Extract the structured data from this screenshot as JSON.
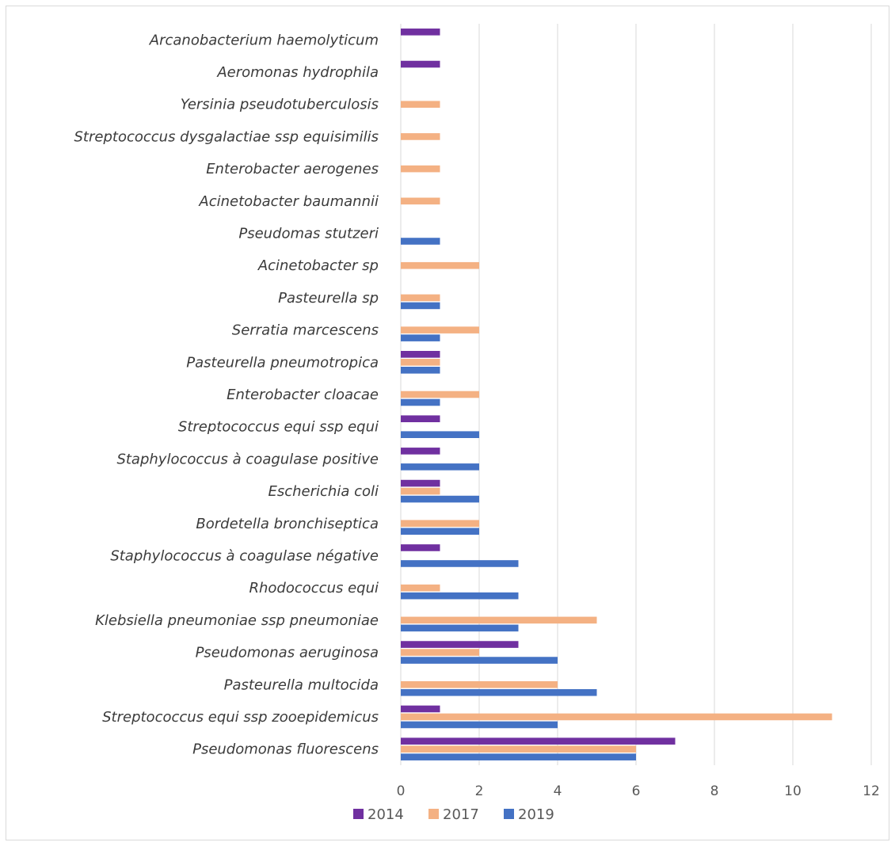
{
  "chart_data": {
    "type": "bar",
    "orientation": "horizontal",
    "categories": [
      "Pseudomonas fluorescens",
      "Streptococcus equi ssp zooepidemicus",
      "Pasteurella multocida",
      "Pseudomonas aeruginosa",
      "Klebsiella pneumoniae ssp pneumoniae",
      "Rhodococcus equi",
      "Staphylococcus à coagulase négative",
      "Bordetella bronchiseptica",
      "Escherichia coli",
      "Staphylococcus à coagulase positive",
      "Streptococcus equi ssp equi",
      "Enterobacter cloacae",
      "Pasteurella pneumotropica",
      "Serratia marcescens",
      "Pasteurella sp",
      "Acinetobacter sp",
      "Pseudomas stutzeri",
      "Acinetobacter baumannii",
      "Enterobacter aerogenes",
      "Streptococcus dysgalactiae ssp equisimilis",
      "Yersinia pseudotuberculosis",
      "Aeromonas hydrophila",
      "Arcanobacterium haemolyticum"
    ],
    "series": [
      {
        "name": "2014",
        "color": "#7030a0",
        "values": [
          7,
          1,
          0,
          3,
          0,
          0,
          1,
          0,
          1,
          1,
          1,
          0,
          1,
          0,
          0,
          0,
          0,
          0,
          0,
          0,
          0,
          1,
          1
        ]
      },
      {
        "name": "2017",
        "color": "#f4b183",
        "values": [
          6,
          11,
          4,
          2,
          5,
          1,
          0,
          2,
          1,
          0,
          0,
          2,
          1,
          2,
          1,
          2,
          0,
          1,
          1,
          1,
          1,
          0,
          0
        ]
      },
      {
        "name": "2019",
        "color": "#4472c4",
        "values": [
          6,
          4,
          5,
          4,
          3,
          3,
          3,
          2,
          2,
          2,
          2,
          1,
          1,
          1,
          1,
          0,
          1,
          0,
          0,
          0,
          0,
          0,
          0
        ]
      }
    ],
    "xlim": [
      0,
      12
    ],
    "xticks": [
      "0",
      "2",
      "4",
      "6",
      "8",
      "10",
      "12"
    ],
    "grid": true,
    "legend_position": "bottom",
    "gridline_color": "#d9d9d9",
    "label_color": "#3b3b3b",
    "tick_color": "#595959"
  }
}
